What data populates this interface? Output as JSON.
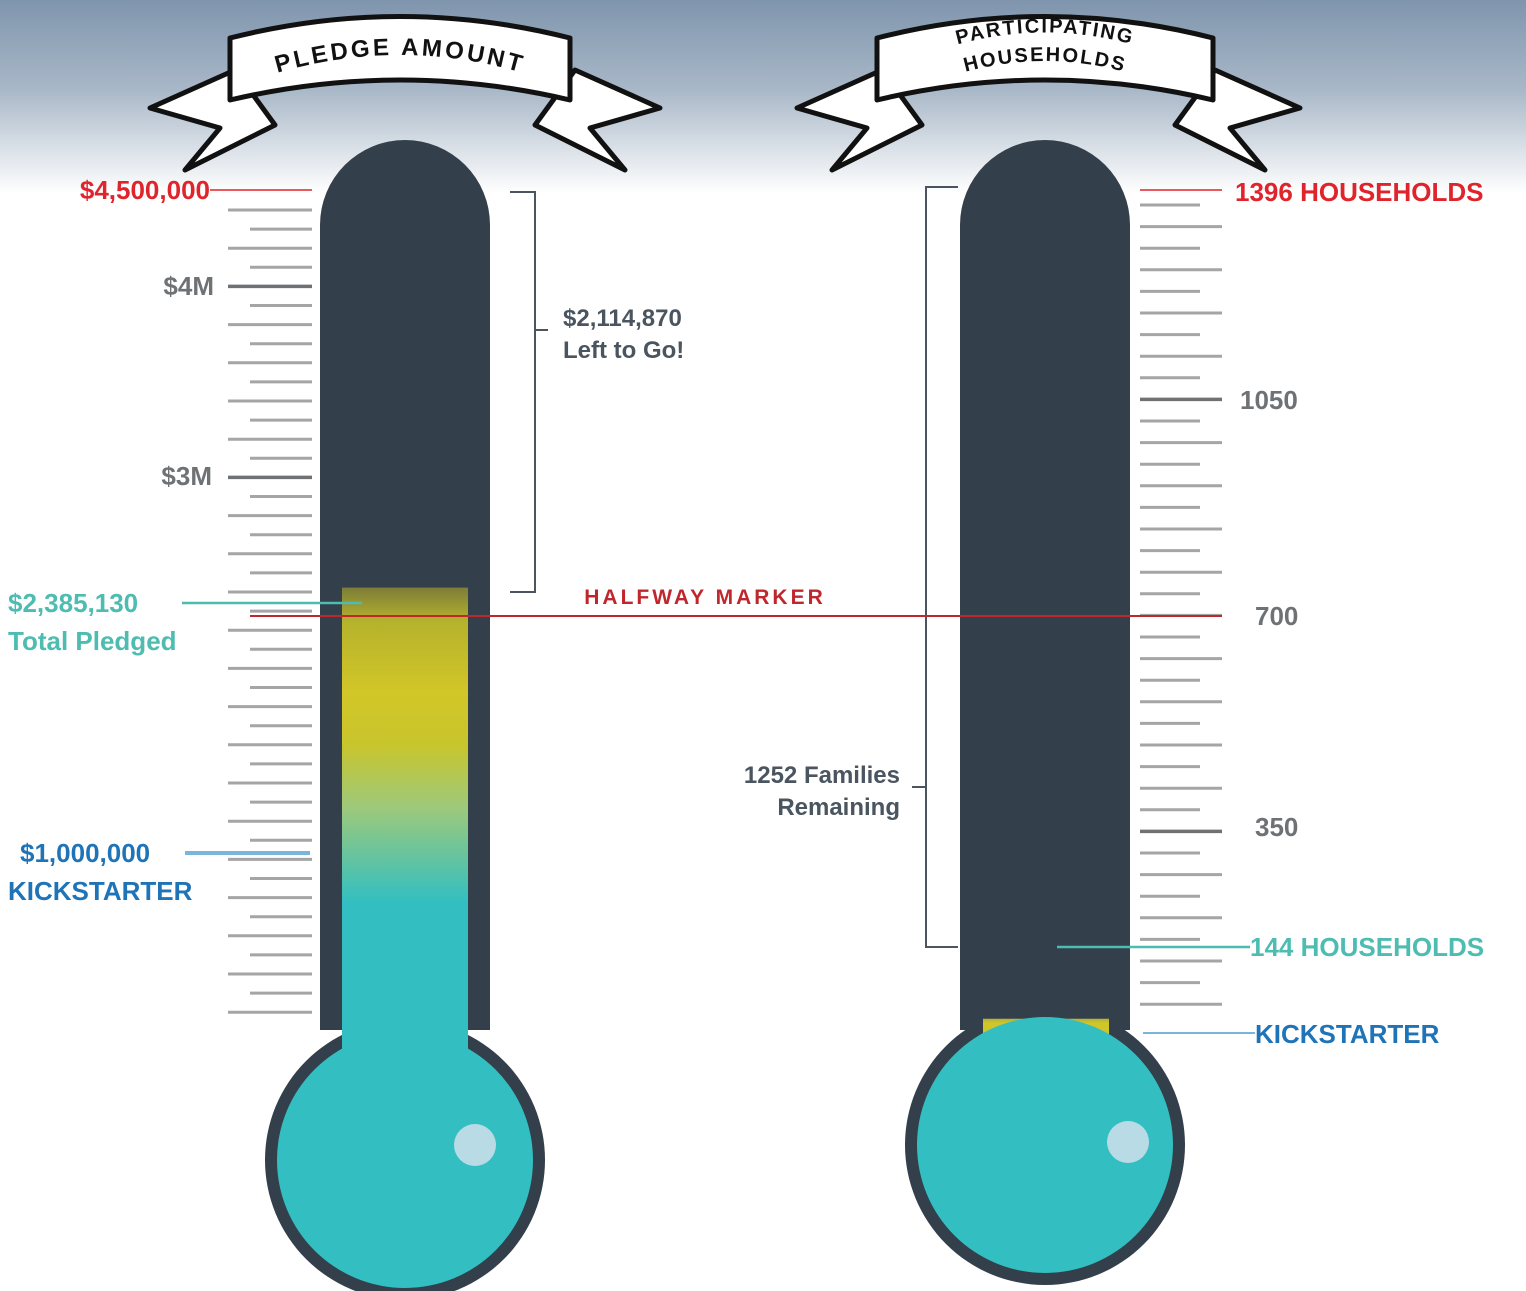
{
  "colors": {
    "tube": "#333f4a",
    "liquid_teal": "#33bfc1",
    "liquid_yellow": "#d2c628",
    "tick": "#a4a5a6",
    "tick_major": "#6f7275",
    "goal_red": "#e0242c",
    "halfway_red": "#c0272d",
    "pledged_teal": "#4dbcb1",
    "kickstarter_blue": "#1f74b8"
  },
  "chart_data": [
    {
      "type": "thermometer",
      "title": "PLEDGE AMOUNT",
      "ylim": [
        0,
        4500000
      ],
      "tick_labels": [
        "$4M",
        "$3M"
      ],
      "goal": {
        "value": 4500000,
        "label": "$4,500,000"
      },
      "current": {
        "value": 2385130,
        "label": "$2,385,130",
        "caption": "Total Pledged"
      },
      "kickstarter": {
        "value": 1000000,
        "label": "$1,000,000",
        "caption": "KICKSTARTER"
      },
      "remaining": {
        "value": 2114870,
        "label": "$2,114,870",
        "caption": "Left to Go!"
      },
      "halfway_label": "HALFWAY MARKER"
    },
    {
      "type": "thermometer",
      "title_line1": "PARTICIPATING",
      "title_line2": "HOUSEHOLDS",
      "ylim": [
        0,
        1396
      ],
      "tick_labels": [
        "1050",
        "700",
        "350"
      ],
      "goal": {
        "value": 1396,
        "label": "1396 HOUSEHOLDS"
      },
      "current": {
        "value": 144,
        "label": "144 HOUSEHOLDS"
      },
      "kickstarter": {
        "label": "KICKSTARTER"
      },
      "remaining": {
        "value": 1252,
        "label_line1": "1252 Families",
        "label_line2": "Remaining"
      }
    }
  ]
}
